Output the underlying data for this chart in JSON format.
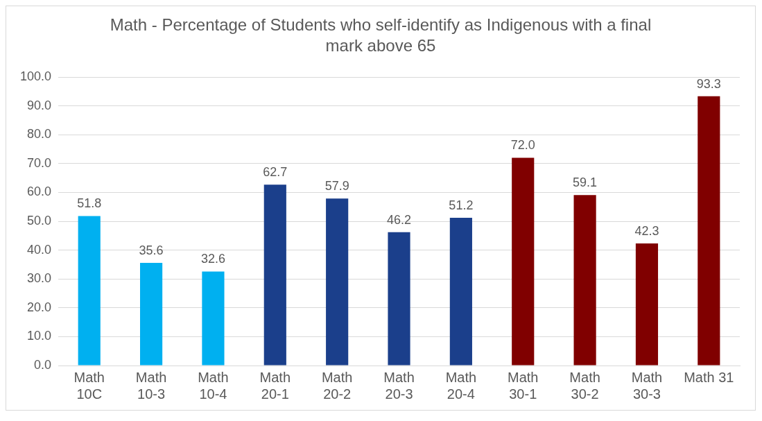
{
  "chart_data": {
    "type": "bar",
    "title": "Math - Percentage of Students who self-identify as Indigenous with a final mark above 65",
    "categories": [
      "Math 10C",
      "Math 10-3",
      "Math 10-4",
      "Math 20-1",
      "Math 20-2",
      "Math 20-3",
      "Math 20-4",
      "Math 30-1",
      "Math 30-2",
      "Math 30-3",
      "Math 31"
    ],
    "values": [
      51.8,
      35.6,
      32.6,
      62.7,
      57.9,
      46.2,
      51.2,
      72.0,
      59.1,
      42.3,
      93.3
    ],
    "colors": [
      "#00b0f0",
      "#00b0f0",
      "#00b0f0",
      "#1b3f8b",
      "#1b3f8b",
      "#1b3f8b",
      "#1b3f8b",
      "#800000",
      "#800000",
      "#800000",
      "#800000"
    ],
    "ylim": [
      0,
      100
    ],
    "yticks": [
      {
        "value": 0,
        "label": "0.0"
      },
      {
        "value": 10,
        "label": "10.0"
      },
      {
        "value": 20,
        "label": "20.0"
      },
      {
        "value": 30,
        "label": "30.0"
      },
      {
        "value": 40,
        "label": "40.0"
      },
      {
        "value": 50,
        "label": "50.0"
      },
      {
        "value": 60,
        "label": "60.0"
      },
      {
        "value": 70,
        "label": "70.0"
      },
      {
        "value": 80,
        "label": "80.0"
      },
      {
        "value": 90,
        "label": "90.0"
      },
      {
        "value": 100,
        "label": "100.0"
      }
    ],
    "value_labels": [
      "51.8",
      "35.6",
      "32.6",
      "62.7",
      "57.9",
      "46.2",
      "51.2",
      "72.0",
      "59.1",
      "42.3",
      "93.3"
    ],
    "grid": "y",
    "legend": false
  }
}
